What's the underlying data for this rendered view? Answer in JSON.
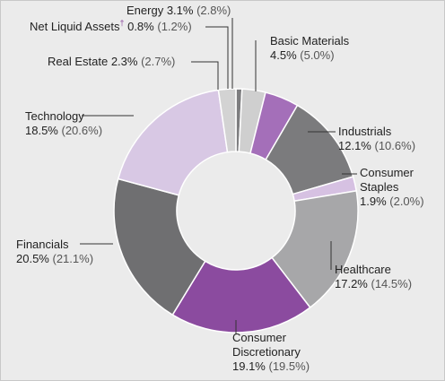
{
  "chart_data": {
    "type": "donut",
    "categories": [
      "Net Liquid Assets",
      "Energy",
      "Basic Materials",
      "Industrials",
      "Consumer Staples",
      "Healthcare",
      "Consumer Discretionary",
      "Financials",
      "Technology",
      "Real Estate"
    ],
    "category_marks": [
      "†",
      null,
      null,
      null,
      null,
      null,
      null,
      null,
      null,
      null
    ],
    "values": [
      0.8,
      3.1,
      4.5,
      12.1,
      1.9,
      17.2,
      19.1,
      20.5,
      18.5,
      2.3
    ],
    "value_labels": [
      "0.8%",
      "3.1%",
      "4.5%",
      "12.1%",
      "1.9%",
      "17.2%",
      "19.1%",
      "20.5%",
      "18.5%",
      "2.3%"
    ],
    "prior_values": [
      1.2,
      2.8,
      5.0,
      10.6,
      2.0,
      14.5,
      19.5,
      21.1,
      20.6,
      2.7
    ],
    "prior_value_labels": [
      "(1.2%)",
      "(2.8%)",
      "(5.0%)",
      "(10.6%)",
      "(2.0%)",
      "(14.5%)",
      "(19.5%)",
      "(21.1%)",
      "(20.6%)",
      "(2.7%)"
    ],
    "colors": [
      "#7d7d7f",
      "#cfcfcf",
      "#a46fb9",
      "#7b7b7d",
      "#d6c1e2",
      "#a7a7a9",
      "#8b4b9f",
      "#6f6f71",
      "#d8c8e4",
      "#d3d3d3"
    ]
  }
}
